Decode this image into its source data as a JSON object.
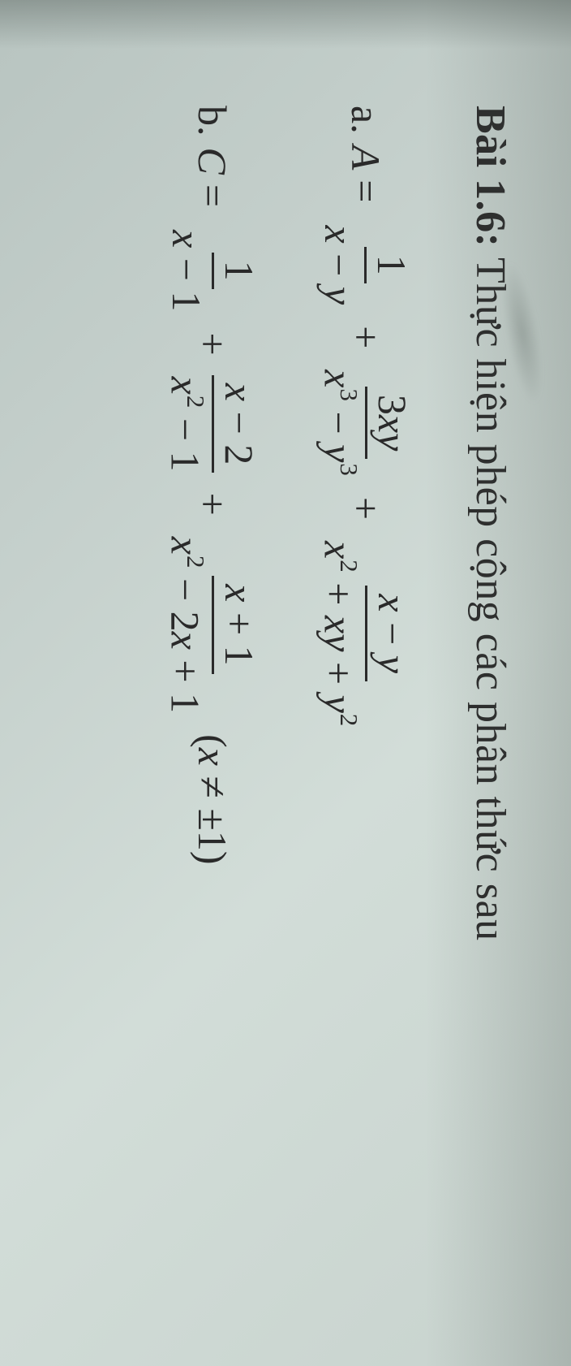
{
  "title_prefix": "Bài 1.6:",
  "title_rest": " Thực hiện phép cộng các phân thức sau",
  "items": {
    "a": {
      "label": "a.",
      "lhs_var": "A",
      "frac1": {
        "num": "1",
        "den_parts": [
          "x",
          " − ",
          "y"
        ]
      },
      "frac2": {
        "num_parts": [
          "3",
          "x",
          "y"
        ],
        "den_parts": [
          "x",
          "3",
          " − ",
          "y",
          "3"
        ]
      },
      "frac3": {
        "num_parts": [
          "x",
          " − ",
          "y"
        ],
        "den_parts": [
          "x",
          "2",
          " + ",
          "x",
          "y",
          " + ",
          "y",
          "2"
        ]
      }
    },
    "b": {
      "label": "b.",
      "lhs_var": "C",
      "frac1": {
        "num": "1",
        "den_parts": [
          "x",
          " − 1"
        ]
      },
      "frac2": {
        "num_parts": [
          "x",
          " − 2"
        ],
        "den_parts": [
          "x",
          "2",
          " − 1"
        ]
      },
      "frac3": {
        "num_parts": [
          "x",
          " + 1"
        ],
        "den_parts": [
          "x",
          "2",
          " − 2",
          "x",
          " + 1"
        ]
      },
      "condition_parts": [
        "(",
        "x",
        " ≠ ±1)"
      ]
    }
  },
  "symbols": {
    "equals": "=",
    "plus": "+"
  }
}
